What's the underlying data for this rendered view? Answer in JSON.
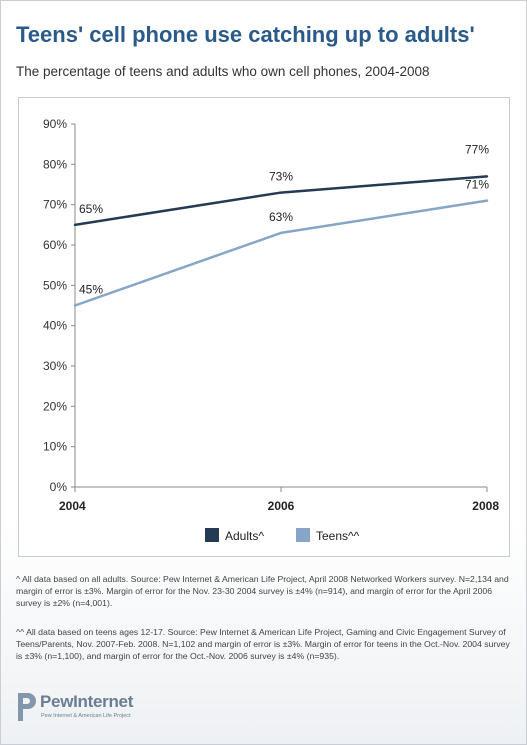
{
  "title": "Teens' cell phone use catching up to adults'",
  "subtitle": "The percentage of teens and adults who own cell phones, 2004-2008",
  "chart_data": {
    "type": "line",
    "x": [
      "2004",
      "2006",
      "2008"
    ],
    "xlim": [
      2004,
      2008
    ],
    "ylim": [
      0,
      90
    ],
    "y_ticks": [
      "0%",
      "10%",
      "20%",
      "30%",
      "40%",
      "50%",
      "60%",
      "70%",
      "80%",
      "90%"
    ],
    "grid": false,
    "legend_position": "bottom",
    "series": [
      {
        "name": "Adults^",
        "values": [
          65,
          73,
          77
        ],
        "labels": [
          "65%",
          "73%",
          "77%"
        ],
        "color": "#243b53"
      },
      {
        "name": "Teens^^",
        "values": [
          45,
          63,
          71
        ],
        "labels": [
          "45%",
          "63%",
          "71%"
        ],
        "color": "#86a5c7"
      }
    ]
  },
  "footnotes": [
    "^ All data based on all adults. Source: Pew Internet & American Life Project, April 2008 Networked Workers survey. N=2,134 and margin of error is ±3%. Margin of error for the Nov. 23-30 2004 survey is ±4% (n=914), and margin of error for the April 2006 survey is ±2% (n=4,001).",
    "^^ All data based on teens ages 12-17. Source: Pew Internet & American Life Project, Gaming and Civic Engagement Survey of Teens/Parents, Nov. 2007-Feb. 2008. N=1,102 and margin of error is ±3%. Margin of error for teens in the Oct.-Nov. 2004 survey is ±3% (n=1,100), and margin of error for the Oct.-Nov. 2006 survey is ±4% (n=935)."
  ],
  "logo": {
    "name": "PewInternet",
    "subtitle": "Pew Internet & American Life Project"
  },
  "colors": {
    "title": "#2a5a8a",
    "adults": "#243b53",
    "teens": "#86a5c7",
    "logo": "#6a7d94"
  }
}
